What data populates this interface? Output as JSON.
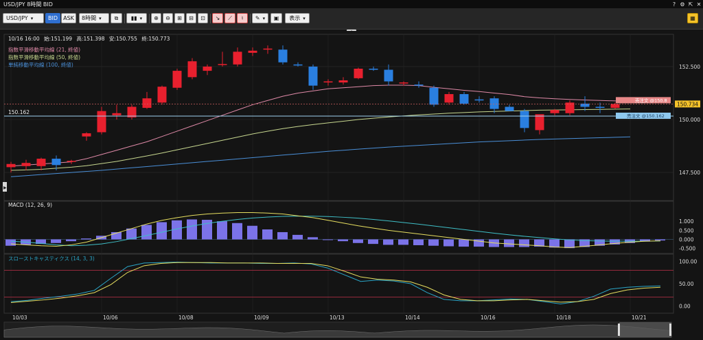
{
  "window": {
    "title": "USD/JPY 8時間 BID",
    "help_icon": "help-icon",
    "settings_icon": "gear-icon",
    "export_icon": "export-icon",
    "close_icon": "close-icon"
  },
  "toolbar": {
    "symbol": "USD/JPY",
    "bid_label": "BID",
    "ask_label": "ASK",
    "timeframe": "8時間",
    "display_label": "表示"
  },
  "ohlc": {
    "datetime": "10/16 16:00",
    "open_label": "始:",
    "open": "151.199",
    "high_label": "高:",
    "high": "151.398",
    "low_label": "安:",
    "low": "150.755",
    "close_label": "終:",
    "close": "150.773"
  },
  "legend": [
    {
      "label": "指数平滑移動平均線 (21, 終値)",
      "color": "#e08aa8"
    },
    {
      "label": "指数平滑移動平均線 (50, 終値)",
      "color": "#c8d890"
    },
    {
      "label": "単純移動平均線 (100, 終値)",
      "color": "#4a8fd8"
    }
  ],
  "price_axis": {
    "ticks": [
      "152.500",
      "150.000",
      "147.500"
    ],
    "current_price": "150.734",
    "current_color": "#f4c22a",
    "line_value": "150.162",
    "line_tag": "売注文 @150.162",
    "line_color": "#8ec8ee",
    "order_tag": "売注文 @150.8",
    "order_color": "#e88888"
  },
  "macd": {
    "label": "MACD (12, 26, 9)",
    "ticks": [
      "1.000",
      "0.500",
      "0.000",
      "-0.500"
    ],
    "histogram": [
      -0.35,
      -0.3,
      -0.25,
      -0.2,
      -0.1,
      0.05,
      0.2,
      0.4,
      0.6,
      0.8,
      0.95,
      1.05,
      1.1,
      1.08,
      1.0,
      0.9,
      0.75,
      0.55,
      0.4,
      0.25,
      0.12,
      0.0,
      -0.1,
      -0.2,
      -0.25,
      -0.3,
      -0.3,
      -0.32,
      -0.35,
      -0.38,
      -0.4,
      -0.4,
      -0.42,
      -0.42,
      -0.42,
      -0.4,
      -0.45,
      -0.48,
      -0.42,
      -0.35,
      -0.28,
      -0.2,
      -0.12,
      -0.06
    ],
    "macd_line": [
      -0.25,
      -0.3,
      -0.35,
      -0.38,
      -0.3,
      -0.15,
      0.1,
      0.35,
      0.6,
      0.85,
      1.05,
      1.2,
      1.32,
      1.4,
      1.45,
      1.48,
      1.48,
      1.45,
      1.4,
      1.3,
      1.2,
      1.05,
      0.9,
      0.75,
      0.62,
      0.5,
      0.4,
      0.3,
      0.2,
      0.1,
      0.0,
      -0.1,
      -0.2,
      -0.25,
      -0.3,
      -0.35,
      -0.42,
      -0.45,
      -0.38,
      -0.3,
      -0.22,
      -0.15,
      -0.1,
      -0.08
    ],
    "signal_line": [
      -0.1,
      -0.15,
      -0.22,
      -0.3,
      -0.35,
      -0.32,
      -0.25,
      -0.12,
      0.05,
      0.22,
      0.4,
      0.58,
      0.74,
      0.88,
      1.0,
      1.1,
      1.18,
      1.23,
      1.27,
      1.28,
      1.28,
      1.26,
      1.22,
      1.17,
      1.1,
      1.02,
      0.93,
      0.84,
      0.74,
      0.64,
      0.54,
      0.44,
      0.34,
      0.25,
      0.17,
      0.1,
      0.03,
      -0.03,
      -0.07,
      -0.09,
      -0.1,
      -0.1,
      -0.1,
      -0.09
    ],
    "ylim": [
      -0.7,
      1.8
    ],
    "hist_color": "#7b73e8",
    "macd_color": "#e8e060",
    "signal_color": "#3fc0c8"
  },
  "stoch": {
    "label": "スローストキャスティクス (14, 3, 3)",
    "ticks": [
      "100.00",
      "50.00",
      "0.00"
    ],
    "k_line": [
      10,
      13,
      18,
      22,
      27,
      35,
      62,
      88,
      96,
      97,
      98,
      97,
      96,
      96,
      96,
      95,
      95,
      96,
      94,
      85,
      70,
      55,
      58,
      56,
      50,
      30,
      15,
      12,
      12,
      14,
      16,
      15,
      10,
      5,
      10,
      22,
      38,
      42,
      44,
      45
    ],
    "d_line": [
      8,
      11,
      14,
      18,
      23,
      30,
      48,
      75,
      90,
      95,
      97,
      97,
      97,
      96,
      96,
      96,
      95,
      95,
      95,
      90,
      78,
      65,
      60,
      58,
      54,
      42,
      25,
      15,
      12,
      12,
      14,
      15,
      12,
      9,
      10,
      15,
      28,
      36,
      40,
      42
    ],
    "ylim": [
      -5,
      105
    ],
    "upper_level": 80,
    "lower_level": 20,
    "k_color": "#2aa6c8",
    "d_color": "#e8e060",
    "level_color": "#c0304a"
  },
  "chart_data": {
    "type": "candlestick",
    "ylim": [
      146.4,
      153.6
    ],
    "x_ticks": [
      "10/03",
      "10/06",
      "10/08",
      "10/09",
      "10/13",
      "10/14",
      "10/16",
      "10/18",
      "10/21"
    ],
    "up_color": "#e8202e",
    "down_color": "#2a7fe0",
    "candles": [
      {
        "o": 147.75,
        "h": 148.0,
        "l": 147.5,
        "c": 147.9
      },
      {
        "o": 147.8,
        "h": 148.1,
        "l": 147.6,
        "c": 147.95
      },
      {
        "o": 147.8,
        "h": 148.2,
        "l": 147.6,
        "c": 148.15
      },
      {
        "o": 148.15,
        "h": 148.3,
        "l": 147.6,
        "c": 147.85
      },
      {
        "o": 148.0,
        "h": 148.1,
        "l": 147.9,
        "c": 148.05
      },
      {
        "o": 149.2,
        "h": 149.4,
        "l": 149.0,
        "c": 149.35
      },
      {
        "o": 149.4,
        "h": 150.6,
        "l": 149.3,
        "c": 150.4
      },
      {
        "o": 150.2,
        "h": 150.7,
        "l": 150.0,
        "c": 150.3
      },
      {
        "o": 150.1,
        "h": 150.7,
        "l": 150.0,
        "c": 150.6
      },
      {
        "o": 150.55,
        "h": 151.3,
        "l": 150.5,
        "c": 151.0
      },
      {
        "o": 150.8,
        "h": 151.6,
        "l": 150.7,
        "c": 151.55
      },
      {
        "o": 151.5,
        "h": 152.4,
        "l": 151.4,
        "c": 152.3
      },
      {
        "o": 152.0,
        "h": 152.9,
        "l": 151.9,
        "c": 152.75
      },
      {
        "o": 152.3,
        "h": 152.6,
        "l": 152.1,
        "c": 152.5
      },
      {
        "o": 152.6,
        "h": 153.2,
        "l": 152.5,
        "c": 152.62
      },
      {
        "o": 152.6,
        "h": 153.4,
        "l": 152.5,
        "c": 153.2
      },
      {
        "o": 153.15,
        "h": 153.4,
        "l": 153.0,
        "c": 153.25
      },
      {
        "o": 153.3,
        "h": 153.5,
        "l": 153.1,
        "c": 153.35
      },
      {
        "o": 153.3,
        "h": 153.5,
        "l": 152.6,
        "c": 152.7
      },
      {
        "o": 152.6,
        "h": 152.7,
        "l": 152.5,
        "c": 152.55
      },
      {
        "o": 152.5,
        "h": 152.6,
        "l": 151.4,
        "c": 151.6
      },
      {
        "o": 151.75,
        "h": 151.9,
        "l": 151.6,
        "c": 151.8
      },
      {
        "o": 151.75,
        "h": 152.0,
        "l": 151.65,
        "c": 151.85
      },
      {
        "o": 151.95,
        "h": 152.45,
        "l": 151.9,
        "c": 152.4
      },
      {
        "o": 152.4,
        "h": 152.5,
        "l": 152.3,
        "c": 152.35
      },
      {
        "o": 152.35,
        "h": 152.6,
        "l": 151.6,
        "c": 151.8
      },
      {
        "o": 151.7,
        "h": 151.8,
        "l": 151.6,
        "c": 151.75
      },
      {
        "o": 151.65,
        "h": 151.8,
        "l": 151.5,
        "c": 151.6
      },
      {
        "o": 151.5,
        "h": 151.6,
        "l": 150.6,
        "c": 150.7
      },
      {
        "o": 150.8,
        "h": 151.3,
        "l": 150.7,
        "c": 151.2
      },
      {
        "o": 151.2,
        "h": 151.3,
        "l": 150.7,
        "c": 150.75
      },
      {
        "o": 150.95,
        "h": 151.1,
        "l": 150.8,
        "c": 150.9
      },
      {
        "o": 151.0,
        "h": 151.1,
        "l": 150.3,
        "c": 150.5
      },
      {
        "o": 150.6,
        "h": 150.7,
        "l": 150.4,
        "c": 150.4
      },
      {
        "o": 150.4,
        "h": 150.5,
        "l": 149.4,
        "c": 149.6
      },
      {
        "o": 149.5,
        "h": 150.2,
        "l": 149.3,
        "c": 150.25
      },
      {
        "o": 150.3,
        "h": 150.5,
        "l": 150.2,
        "c": 150.45
      },
      {
        "o": 150.3,
        "h": 150.9,
        "l": 150.2,
        "c": 150.8
      },
      {
        "o": 150.75,
        "h": 151.1,
        "l": 150.4,
        "c": 150.6
      },
      {
        "o": 150.6,
        "h": 150.8,
        "l": 150.3,
        "c": 150.55
      },
      {
        "o": 150.55,
        "h": 150.8,
        "l": 150.5,
        "c": 150.73
      }
    ],
    "ema21": [
      147.8,
      147.85,
      147.9,
      147.95,
      148.0,
      148.15,
      148.35,
      148.55,
      148.75,
      148.95,
      149.2,
      149.45,
      149.7,
      149.95,
      150.2,
      150.45,
      150.7,
      150.9,
      151.1,
      151.25,
      151.35,
      151.45,
      151.5,
      151.55,
      151.6,
      151.62,
      151.62,
      151.6,
      151.52,
      151.45,
      151.38,
      151.32,
      151.25,
      151.18,
      151.08,
      151.02,
      150.98,
      150.95,
      150.92,
      150.9,
      150.88,
      150.86
    ],
    "ema50": [
      147.6,
      147.62,
      147.65,
      147.7,
      147.75,
      147.82,
      147.92,
      148.02,
      148.15,
      148.28,
      148.42,
      148.57,
      148.72,
      148.87,
      149.02,
      149.17,
      149.32,
      149.45,
      149.57,
      149.67,
      149.76,
      149.84,
      149.92,
      150.0,
      150.06,
      150.12,
      150.17,
      150.22,
      150.26,
      150.3,
      150.33,
      150.36,
      150.38,
      150.4,
      150.42,
      150.44,
      150.45,
      150.46,
      150.47,
      150.48,
      150.49,
      150.5
    ],
    "sma100": [
      147.3,
      147.35,
      147.4,
      147.45,
      147.5,
      147.55,
      147.6,
      147.66,
      147.72,
      147.78,
      147.84,
      147.9,
      147.96,
      148.02,
      148.08,
      148.14,
      148.2,
      148.26,
      148.32,
      148.38,
      148.44,
      148.5,
      148.55,
      148.6,
      148.65,
      148.7,
      148.74,
      148.78,
      148.82,
      148.86,
      148.9,
      148.94,
      148.97,
      149.0,
      149.03,
      149.06,
      149.08,
      149.1,
      149.12,
      149.14,
      149.16,
      149.18
    ]
  }
}
